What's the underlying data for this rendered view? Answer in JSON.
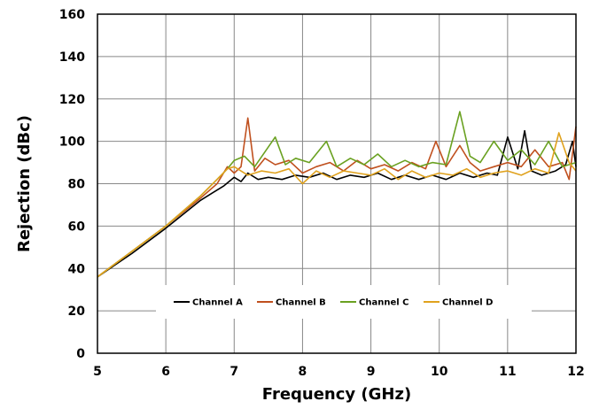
{
  "chart_data": {
    "type": "line",
    "title": "",
    "xlabel": "Frequency (GHz)",
    "ylabel": "Rejection (dBc)",
    "xlim": [
      5,
      12
    ],
    "ylim": [
      0,
      160
    ],
    "xticks": [
      5,
      6,
      7,
      8,
      9,
      10,
      11,
      12
    ],
    "yticks": [
      0,
      20,
      40,
      60,
      80,
      100,
      120,
      140,
      160
    ],
    "grid": true,
    "legend": {
      "placement": "lower-center",
      "orientation": "horizontal"
    },
    "series": [
      {
        "name": "Channel A",
        "color": "#000000",
        "x": [
          5.0,
          5.5,
          6.0,
          6.5,
          6.7,
          6.85,
          7.0,
          7.1,
          7.2,
          7.35,
          7.5,
          7.7,
          7.9,
          8.1,
          8.3,
          8.5,
          8.7,
          8.9,
          9.1,
          9.3,
          9.5,
          9.7,
          9.9,
          10.1,
          10.3,
          10.5,
          10.7,
          10.85,
          11.0,
          11.15,
          11.25,
          11.35,
          11.5,
          11.7,
          11.85,
          11.95,
          12.0
        ],
        "y": [
          36,
          47,
          59,
          72,
          76,
          79,
          83,
          81,
          85,
          82,
          83,
          82,
          84,
          83,
          85,
          82,
          84,
          83,
          85,
          82,
          84,
          82,
          84,
          82,
          85,
          83,
          85,
          84,
          102,
          87,
          105,
          86,
          84,
          86,
          89,
          100,
          88
        ]
      },
      {
        "name": "Channel B",
        "color": "#C0501E",
        "x": [
          5.0,
          5.5,
          6.0,
          6.5,
          6.75,
          6.9,
          7.0,
          7.1,
          7.2,
          7.3,
          7.45,
          7.6,
          7.8,
          8.0,
          8.2,
          8.4,
          8.6,
          8.8,
          9.0,
          9.2,
          9.4,
          9.6,
          9.8,
          9.95,
          10.1,
          10.3,
          10.45,
          10.6,
          10.8,
          11.0,
          11.2,
          11.4,
          11.6,
          11.8,
          11.9,
          12.0
        ],
        "y": [
          36,
          48,
          60,
          73,
          80,
          88,
          85,
          88,
          111,
          86,
          92,
          89,
          91,
          85,
          88,
          90,
          86,
          91,
          87,
          89,
          86,
          90,
          87,
          100,
          88,
          98,
          90,
          86,
          88,
          90,
          88,
          96,
          88,
          90,
          82,
          107
        ]
      },
      {
        "name": "Channel C",
        "color": "#6AA121",
        "x": [
          5.0,
          5.5,
          6.0,
          6.5,
          6.75,
          6.9,
          7.0,
          7.15,
          7.3,
          7.45,
          7.6,
          7.75,
          7.9,
          8.1,
          8.35,
          8.5,
          8.7,
          8.9,
          9.1,
          9.3,
          9.5,
          9.7,
          9.9,
          10.1,
          10.3,
          10.45,
          10.6,
          10.8,
          11.0,
          11.2,
          11.4,
          11.6,
          11.8,
          12.0
        ],
        "y": [
          36,
          48,
          60,
          74,
          82,
          87,
          91,
          93,
          88,
          95,
          102,
          89,
          92,
          90,
          100,
          88,
          92,
          89,
          94,
          88,
          91,
          88,
          90,
          89,
          114,
          93,
          90,
          100,
          91,
          96,
          89,
          100,
          88,
          90
        ]
      },
      {
        "name": "Channel D",
        "color": "#E0A21E",
        "x": [
          5.0,
          5.5,
          6.0,
          6.5,
          6.75,
          6.9,
          7.0,
          7.2,
          7.4,
          7.6,
          7.8,
          8.0,
          8.2,
          8.4,
          8.6,
          8.8,
          9.0,
          9.2,
          9.4,
          9.6,
          9.8,
          10.0,
          10.2,
          10.4,
          10.6,
          10.8,
          11.0,
          11.2,
          11.4,
          11.6,
          11.75,
          11.9,
          12.0
        ],
        "y": [
          36,
          48,
          60,
          74,
          82,
          87,
          88,
          84,
          86,
          85,
          87,
          80,
          86,
          83,
          86,
          85,
          84,
          87,
          82,
          86,
          83,
          85,
          84,
          87,
          83,
          85,
          86,
          84,
          87,
          85,
          104,
          90,
          86
        ]
      }
    ]
  }
}
